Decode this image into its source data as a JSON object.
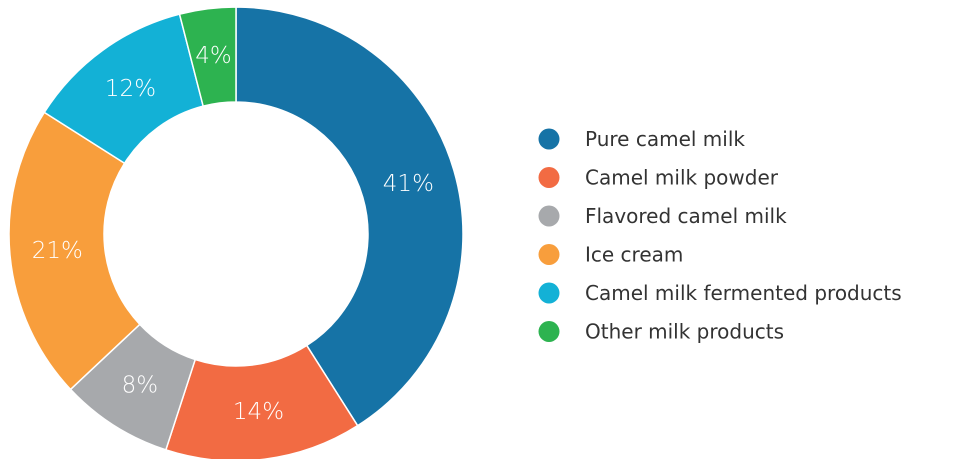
{
  "chart_data": {
    "type": "pie",
    "donut": true,
    "categories": [
      "Pure camel milk",
      "Camel milk powder",
      "Flavored camel milk",
      "Ice cream",
      "Camel milk fermented products",
      "Other milk products"
    ],
    "values": [
      41,
      14,
      8,
      21,
      12,
      4
    ],
    "value_labels": [
      "41%",
      "14%",
      "8%",
      "21%",
      "12%",
      "4%"
    ],
    "colors": [
      "#1673a6",
      "#f26b43",
      "#a7a9ac",
      "#f89e3c",
      "#13b1d6",
      "#2db350"
    ],
    "start_angle_deg": 0,
    "direction": "clockwise",
    "legend_position": "right",
    "title": ""
  }
}
